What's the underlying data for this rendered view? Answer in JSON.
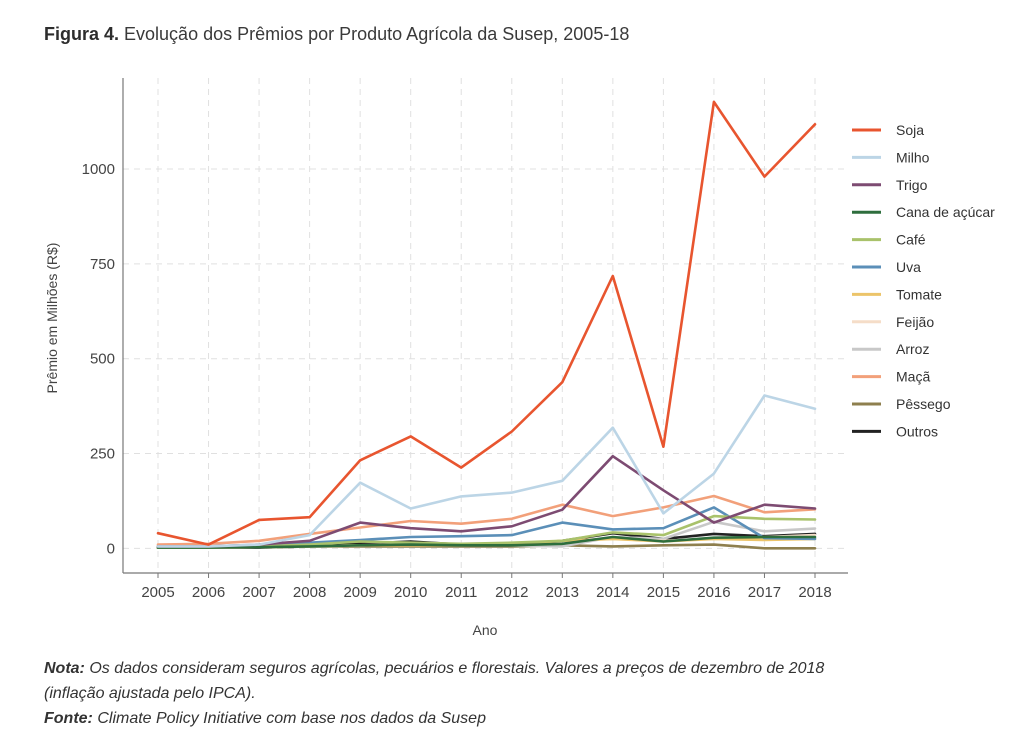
{
  "header": {
    "figure_label": "Figura 4.",
    "figure_title": "Evolução dos Prêmios por Produto Agrícola da Susep, 2005-18"
  },
  "notes": {
    "nota_label": "Nota:",
    "nota_text": "Os dados consideram seguros agrícolas, pecuários e florestais. Valores a preços de dezembro de 2018",
    "nota_text2": "(inflação ajustada pelo IPCA).",
    "fonte_label": "Fonte:",
    "fonte_text": "Climate Policy Initiative com base nos dados da Susep"
  },
  "chart_data": {
    "type": "line",
    "title": "Evolução dos Prêmios por Produto Agrícola da Susep, 2005-18",
    "xlabel": "Ano",
    "ylabel": "Prêmio em Milhões (R$)",
    "ylim": [
      -65,
      1240
    ],
    "yticks": [
      0,
      250,
      500,
      750,
      1000
    ],
    "grid": true,
    "legend_position": "right",
    "x": [
      "2005",
      "2006",
      "2007",
      "2008",
      "2009",
      "2010",
      "2011",
      "2012",
      "2013",
      "2014",
      "2015",
      "2016",
      "2017",
      "2018"
    ],
    "series": [
      {
        "name": "Soja",
        "color": "#e8552f",
        "values": [
          40,
          10,
          75,
          82,
          232,
          295,
          213,
          308,
          438,
          718,
          268,
          1177,
          980,
          1118
        ]
      },
      {
        "name": "Milho",
        "color": "#bcd5e6",
        "values": [
          5,
          5,
          10,
          35,
          173,
          105,
          137,
          147,
          178,
          318,
          92,
          197,
          403,
          368
        ]
      },
      {
        "name": "Trigo",
        "color": "#7d4b72",
        "values": [
          5,
          5,
          10,
          20,
          68,
          53,
          45,
          58,
          102,
          243,
          153,
          68,
          115,
          105
        ]
      },
      {
        "name": "Cana de açúcar",
        "color": "#2e6e3d",
        "values": [
          2,
          2,
          3,
          5,
          8,
          10,
          8,
          8,
          12,
          30,
          18,
          28,
          30,
          30
        ]
      },
      {
        "name": "Café",
        "color": "#a9c26b",
        "values": [
          2,
          2,
          5,
          10,
          18,
          15,
          12,
          15,
          20,
          42,
          35,
          85,
          78,
          76
        ]
      },
      {
        "name": "Uva",
        "color": "#5b8fb8",
        "values": [
          5,
          5,
          8,
          15,
          22,
          30,
          32,
          35,
          68,
          50,
          53,
          108,
          27,
          25
        ]
      },
      {
        "name": "Tomate",
        "color": "#ecc46a",
        "values": [
          2,
          2,
          3,
          5,
          8,
          8,
          8,
          10,
          20,
          25,
          18,
          25,
          22,
          25
        ]
      },
      {
        "name": "Feijão",
        "color": "#f5ddc8",
        "values": [
          2,
          2,
          3,
          5,
          8,
          10,
          10,
          12,
          20,
          25,
          20,
          25,
          30,
          35
        ]
      },
      {
        "name": "Arroz",
        "color": "#c8c8c8",
        "values": [
          2,
          2,
          3,
          5,
          8,
          10,
          10,
          8,
          5,
          30,
          25,
          70,
          45,
          52
        ]
      },
      {
        "name": "Maçã",
        "color": "#f2a07a",
        "values": [
          10,
          12,
          20,
          38,
          55,
          72,
          65,
          78,
          115,
          85,
          108,
          138,
          95,
          103
        ]
      },
      {
        "name": "Pêssego",
        "color": "#8e7f4e",
        "values": [
          2,
          2,
          3,
          5,
          5,
          5,
          5,
          5,
          8,
          5,
          8,
          10,
          0,
          0
        ]
      },
      {
        "name": "Outros",
        "color": "#222222",
        "values": [
          2,
          2,
          2,
          5,
          12,
          18,
          10,
          8,
          20,
          40,
          25,
          38,
          32,
          38
        ]
      }
    ]
  }
}
